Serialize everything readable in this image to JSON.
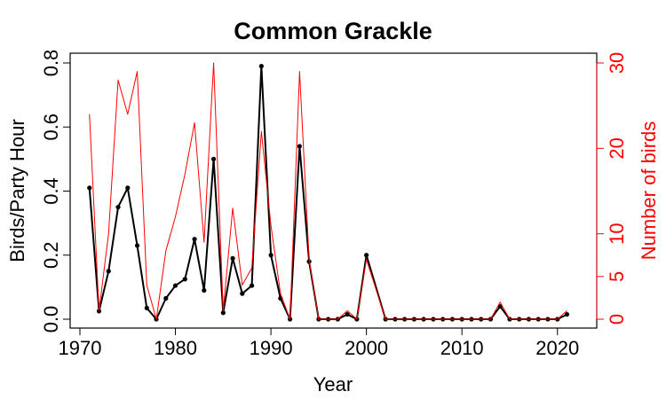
{
  "chart_data": {
    "type": "line",
    "title": "Common Grackle",
    "xlabel": "Year",
    "ylabel": "Birds/Party Hour",
    "y2label": "Number of birds",
    "xlim": [
      1970,
      2023
    ],
    "ylim": [
      0,
      0.8
    ],
    "y2lim": [
      0,
      30
    ],
    "xticks": [
      1970,
      1980,
      1990,
      2000,
      2010,
      2020
    ],
    "yticks": [
      "0.0",
      "0.2",
      "0.4",
      "0.6",
      "0.8"
    ],
    "y2ticks": [
      "0",
      "5",
      "10",
      "20",
      "30"
    ],
    "x": [
      1971,
      1972,
      1973,
      1974,
      1975,
      1976,
      1977,
      1978,
      1979,
      1980,
      1981,
      1982,
      1983,
      1984,
      1985,
      1986,
      1987,
      1988,
      1989,
      1990,
      1991,
      1992,
      1993,
      1994,
      1995,
      1996,
      1997,
      1998,
      1999,
      2000,
      2002,
      2003,
      2004,
      2005,
      2006,
      2007,
      2008,
      2009,
      2010,
      2011,
      2012,
      2013,
      2014,
      2015,
      2016,
      2017,
      2018,
      2019,
      2020,
      2021
    ],
    "series": [
      {
        "axis": "left",
        "color": "#000000",
        "values": [
          0.41,
          0.025,
          0.15,
          0.35,
          0.41,
          0.23,
          0.035,
          0.0,
          0.065,
          0.105,
          0.125,
          0.25,
          0.09,
          0.5,
          0.02,
          0.19,
          0.08,
          0.105,
          0.79,
          0.2,
          0.065,
          0.0,
          0.54,
          0.18,
          0.0,
          0.0,
          0.0,
          0.015,
          0.0,
          0.2,
          0.0,
          0.0,
          0.0,
          0.0,
          0.0,
          0.0,
          0.0,
          0.0,
          0.0,
          0.0,
          0.0,
          0.0,
          0.04,
          0.0,
          0.0,
          0.0,
          0.0,
          0.0,
          0.0,
          0.015
        ]
      },
      {
        "axis": "right",
        "color": "#ff0000",
        "values": [
          24,
          1,
          10,
          28,
          24,
          29,
          4,
          0,
          8,
          12,
          17,
          23,
          9,
          30,
          1,
          13,
          4,
          6,
          22,
          11,
          3,
          0,
          29,
          7,
          0,
          0,
          0,
          1,
          0,
          7,
          0,
          0,
          0,
          0,
          0,
          0,
          0,
          0,
          0,
          0,
          0,
          0,
          2,
          0,
          0,
          0,
          0,
          0,
          0,
          1
        ]
      }
    ]
  }
}
